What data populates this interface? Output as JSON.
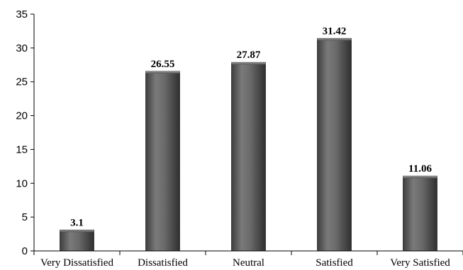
{
  "chart_data": {
    "type": "bar",
    "title": "",
    "xlabel": "",
    "ylabel": "",
    "categories": [
      "Very Dissatisfied",
      "Dissatisfied",
      "Neutral",
      "Satisfied",
      "Very Satisfied"
    ],
    "values": [
      3.1,
      26.55,
      27.87,
      31.42,
      11.06
    ],
    "data_labels": [
      "3.1",
      "26.55",
      "27.87",
      "31.42",
      "11.06"
    ],
    "ylim": [
      0,
      35
    ],
    "yticks": [
      0,
      5,
      10,
      15,
      20,
      25,
      30,
      35
    ],
    "grid": false,
    "legend": "none",
    "bar_color": "#666666"
  }
}
